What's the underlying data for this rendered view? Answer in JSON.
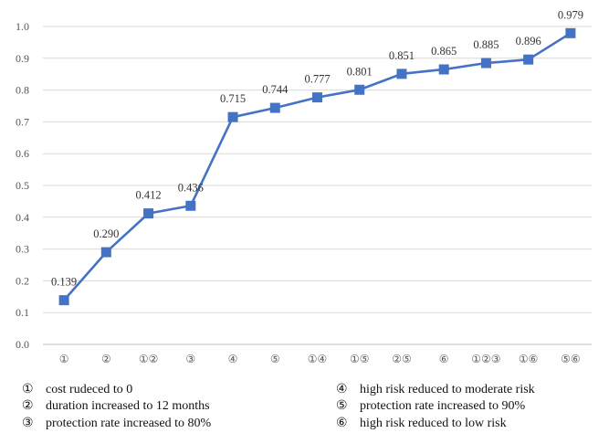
{
  "chart_data": {
    "type": "line",
    "categories": [
      "①",
      "②",
      "①②",
      "③",
      "④",
      "⑤",
      "①④",
      "①⑤",
      "②⑤",
      "⑥",
      "①②③",
      "①⑥",
      "⑤⑥"
    ],
    "series": [
      {
        "values": [
          0.139,
          0.29,
          0.412,
          0.436,
          0.715,
          0.744,
          0.777,
          0.801,
          0.851,
          0.865,
          0.885,
          0.896,
          0.979
        ]
      }
    ],
    "data_labels": [
      "0.139",
      "0.290",
      "0.412",
      "0.436",
      "0.715",
      "0.744",
      "0.777",
      "0.801",
      "0.851",
      "0.865",
      "0.885",
      "0.896",
      "0.979"
    ],
    "ylim": [
      0,
      1.0
    ],
    "yticks": [
      "0.0",
      "0.1",
      "0.2",
      "0.3",
      "0.4",
      "0.5",
      "0.6",
      "0.7",
      "0.8",
      "0.9",
      "1.0"
    ],
    "grid": true,
    "color": "#4472C4"
  },
  "legend": [
    {
      "marker": "①",
      "text": "cost rudeced to 0"
    },
    {
      "marker": "②",
      "text": "duration increased to 12 months"
    },
    {
      "marker": "③",
      "text": "protection rate increased to 80%"
    },
    {
      "marker": "④",
      "text": "high risk reduced to moderate risk"
    },
    {
      "marker": "⑤",
      "text": "protection rate increased to 90%"
    },
    {
      "marker": "⑥",
      "text": "high risk reduced to low risk"
    }
  ]
}
